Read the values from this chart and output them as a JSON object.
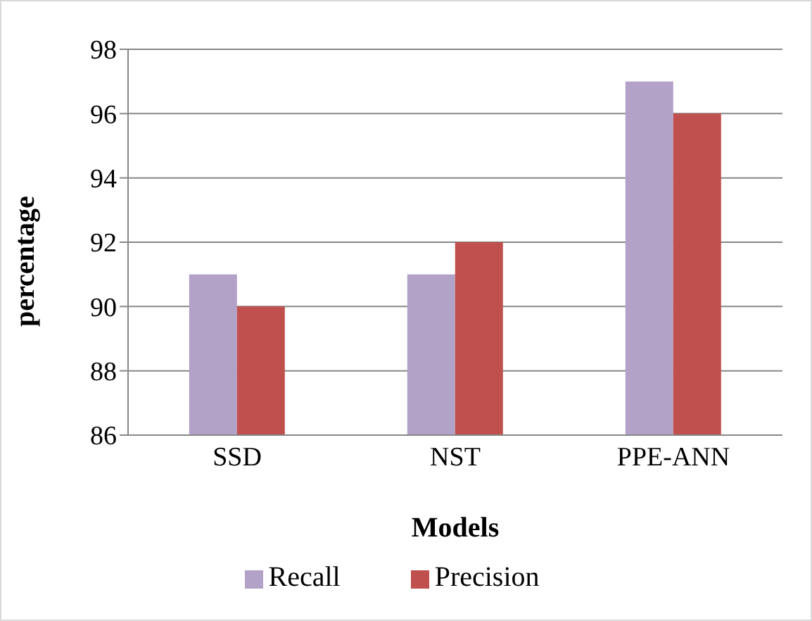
{
  "chart_data": {
    "type": "bar",
    "xlabel": "Models",
    "ylabel": "percentage",
    "categories": [
      "SSD",
      "NST",
      "PPE-ANN"
    ],
    "series": [
      {
        "name": "Recall",
        "color": "#b3a2c7",
        "values": [
          91,
          91,
          97
        ]
      },
      {
        "name": "Precision",
        "color": "#c0504d",
        "values": [
          90,
          92,
          96
        ]
      }
    ],
    "ylim": [
      86,
      98
    ],
    "yticks": [
      86,
      88,
      90,
      92,
      94,
      96,
      98
    ],
    "grid": "y",
    "legend": "bottom"
  }
}
